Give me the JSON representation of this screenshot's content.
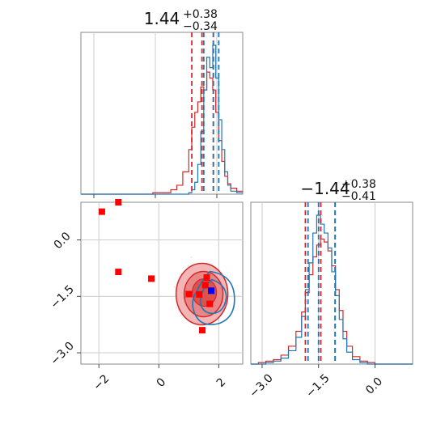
{
  "chart_data": [
    {
      "type": "histogram",
      "panel": "top-left",
      "title": {
        "value": "1.44",
        "plus": "+0.38",
        "minus": "−0.34"
      },
      "x_range": [
        -2.6,
        2.8
      ],
      "series": [
        {
          "color": "#d62728",
          "x": [
            -2.6,
            -2.4,
            -2.2,
            -2.0,
            -1.8,
            -1.6,
            -1.4,
            -1.2,
            -1.0,
            -0.8,
            -0.6,
            -0.4,
            -0.2,
            0.0,
            0.2,
            0.4,
            0.6,
            0.8,
            1.0,
            1.1,
            1.2,
            1.3,
            1.4,
            1.5,
            1.6,
            1.7,
            1.8,
            1.9,
            2.0,
            2.1,
            2.2,
            2.3,
            2.4,
            2.6,
            2.8
          ],
          "counts": [
            0,
            0,
            0,
            0,
            0,
            0,
            0,
            0,
            0,
            0,
            0,
            0,
            0.01,
            0.01,
            0.01,
            0.03,
            0.06,
            0.15,
            0.3,
            0.45,
            0.55,
            0.62,
            0.72,
            0.7,
            0.82,
            0.78,
            0.7,
            0.55,
            0.36,
            0.22,
            0.12,
            0.07,
            0.04,
            0.02,
            0
          ]
        },
        {
          "color": "#1f77b4",
          "x": [
            -2.6,
            -2.4,
            -2.2,
            -2.0,
            -1.8,
            -1.6,
            -1.4,
            -1.2,
            -1.0,
            -0.8,
            -0.6,
            -0.4,
            -0.2,
            0.0,
            0.2,
            0.4,
            0.6,
            0.8,
            1.0,
            1.1,
            1.2,
            1.3,
            1.4,
            1.5,
            1.6,
            1.7,
            1.8,
            1.9,
            2.0,
            2.1,
            2.2,
            2.3,
            2.4,
            2.6,
            2.8
          ],
          "counts": [
            0,
            0,
            0,
            0,
            0,
            0,
            0,
            0,
            0,
            0,
            0,
            0,
            0,
            0,
            0,
            0,
            0,
            0,
            0.01,
            0.03,
            0.08,
            0.2,
            0.42,
            0.7,
            0.92,
            0.85,
            1.0,
            0.78,
            0.5,
            0.3,
            0.15,
            0.06,
            0.02,
            0.01,
            0
          ]
        }
      ],
      "quantile_lines": [
        {
          "color": "#d62728",
          "x": [
            1.1,
            1.44,
            1.82
          ]
        },
        {
          "color": "#1f77b4",
          "x": [
            1.5,
            1.82,
            2.0
          ]
        }
      ]
    },
    {
      "type": "scatter",
      "panel": "bottom-left",
      "x_range": [
        -2.6,
        2.8
      ],
      "y_range": [
        -3.3,
        1.0
      ],
      "xticks": [
        "−2",
        "0",
        "2"
      ],
      "xtick_values": [
        -2,
        0,
        2
      ],
      "yticks": [
        "0.0",
        "−1.5",
        "−3.0"
      ],
      "ytick_values": [
        0.0,
        -1.5,
        -3.0
      ],
      "red_squares": [
        [
          -1.9,
          0.75
        ],
        [
          -1.35,
          1.0
        ],
        [
          -1.35,
          -0.85
        ],
        [
          -0.25,
          -1.03
        ],
        [
          1.0,
          -1.44
        ],
        [
          1.6,
          -1.0
        ],
        [
          1.35,
          -1.45
        ],
        [
          1.7,
          -1.7
        ],
        [
          1.45,
          -2.4
        ],
        [
          1.55,
          -1.2
        ]
      ],
      "blue_squares": [
        [
          1.75,
          -1.35
        ]
      ],
      "contour_center": [
        1.44,
        -1.44
      ]
    },
    {
      "type": "histogram",
      "panel": "bottom-right",
      "title": {
        "value": "−1.44",
        "plus": "+0.38",
        "minus": "−0.41"
      },
      "x_range": [
        -3.3,
        1.0
      ],
      "xticks": [
        "−3.0",
        "−1.5",
        "0.0"
      ],
      "xtick_values": [
        -3.0,
        -1.5,
        0.0
      ],
      "series": [
        {
          "color": "#d62728",
          "x": [
            -3.3,
            -3.1,
            -2.9,
            -2.7,
            -2.5,
            -2.3,
            -2.1,
            -1.95,
            -1.85,
            -1.75,
            -1.65,
            -1.55,
            -1.45,
            -1.35,
            -1.25,
            -1.15,
            -1.05,
            -0.95,
            -0.85,
            -0.75,
            -0.6,
            -0.4,
            -0.2,
            0.0,
            0.2,
            1.0
          ],
          "counts": [
            0,
            0.01,
            0.02,
            0.03,
            0.06,
            0.12,
            0.22,
            0.35,
            0.48,
            0.6,
            0.72,
            0.8,
            0.84,
            0.82,
            0.76,
            0.66,
            0.5,
            0.36,
            0.22,
            0.12,
            0.05,
            0.02,
            0.01,
            0,
            0,
            0
          ]
        },
        {
          "color": "#1f77b4",
          "x": [
            -3.3,
            -3.1,
            -2.9,
            -2.7,
            -2.5,
            -2.3,
            -2.1,
            -1.95,
            -1.85,
            -1.75,
            -1.65,
            -1.55,
            -1.45,
            -1.35,
            -1.25,
            -1.15,
            -1.05,
            -0.95,
            -0.85,
            -0.75,
            -0.6,
            -0.4,
            -0.2,
            0.0,
            0.2,
            1.0
          ],
          "counts": [
            0,
            0,
            0.01,
            0.02,
            0.04,
            0.09,
            0.18,
            0.32,
            0.5,
            0.68,
            0.88,
            1.0,
            0.94,
            0.88,
            0.78,
            0.62,
            0.46,
            0.3,
            0.17,
            0.08,
            0.03,
            0.01,
            0,
            0,
            0,
            0
          ]
        }
      ],
      "quantile_lines": [
        {
          "color": "#d62728",
          "x": [
            -1.85,
            -1.44,
            -1.06
          ]
        },
        {
          "color": "#1f77b4",
          "x": [
            -1.78,
            -1.5,
            -1.06
          ]
        }
      ]
    }
  ]
}
